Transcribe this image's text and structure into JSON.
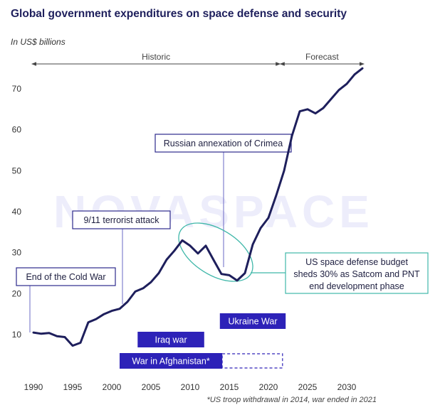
{
  "title": "Global government expenditures on space defense and security",
  "subtitle": "In US$ billions",
  "footnote": "*US troop withdrawal in 2014, war ended in 2021",
  "watermark": "NOVASPACE",
  "chart_data": {
    "type": "line",
    "title": "Global government expenditures on space defense and security",
    "ylabel": "In US$ billions",
    "xlim": [
      1989.5,
      2032.5
    ],
    "ylim": [
      0,
      75
    ],
    "x_ticks": [
      1990,
      1995,
      2000,
      2005,
      2010,
      2015,
      2020,
      2025,
      2030
    ],
    "y_ticks": [
      10,
      20,
      30,
      40,
      50,
      60,
      70
    ],
    "grid": false,
    "series": [
      {
        "color": "#1e1f5c",
        "x": [
          1990,
          1991,
          1992,
          1993,
          1994,
          1995,
          1996,
          1997,
          1998,
          1999,
          2000,
          2001,
          2002,
          2003,
          2004,
          2005,
          2006,
          2007,
          2008,
          2009,
          2010,
          2011,
          2012,
          2013,
          2014,
          2015,
          2016,
          2017,
          2018,
          2019,
          2020,
          2021,
          2022,
          2023,
          2024,
          2025,
          2026,
          2027,
          2028,
          2029,
          2030,
          2031,
          2032
        ],
        "values": [
          10.5,
          10.2,
          10.4,
          9.6,
          9.4,
          7.3,
          8.0,
          13.0,
          13.8,
          15.0,
          15.8,
          16.3,
          18.0,
          20.5,
          21.3,
          22.8,
          25.0,
          28.3,
          30.5,
          33.0,
          31.7,
          29.8,
          31.7,
          28.2,
          24.8,
          24.5,
          23.2,
          25.0,
          32.0,
          36.0,
          38.5,
          44.0,
          50.0,
          58.5,
          64.5,
          65.0,
          64.0,
          65.3,
          67.5,
          69.7,
          71.2,
          73.5,
          75.0
        ]
      }
    ],
    "periods": [
      {
        "label": "Historic",
        "from": 1989.8,
        "to": 2021.5
      },
      {
        "label": "Forecast",
        "from": 2021.5,
        "to": 2032.2
      }
    ],
    "annotations": [
      {
        "text": "End of the Cold War",
        "x": 1989.6
      },
      {
        "text": "9/11 terrorist attack",
        "x": 2001.2
      },
      {
        "text": "Russian annexation of Crimea",
        "x": 2014.0
      }
    ],
    "callout": {
      "lines": [
        "US space defense budget",
        "sheds 30% as Satcom and PNT",
        "end development phase"
      ],
      "target_x": 2012.0,
      "target_y": 28.5
    },
    "event_bars": [
      {
        "label": "Iraq war",
        "from": 2003.3,
        "to": 2011.8,
        "dashed_to": null
      },
      {
        "label": "War in Afghanistan*",
        "from": 2001.0,
        "to": 2014.1,
        "dashed_to": 2021.8
      },
      {
        "label": "Ukraine War",
        "from": 2013.8,
        "to": 2022.2,
        "dashed_to": null
      }
    ]
  }
}
